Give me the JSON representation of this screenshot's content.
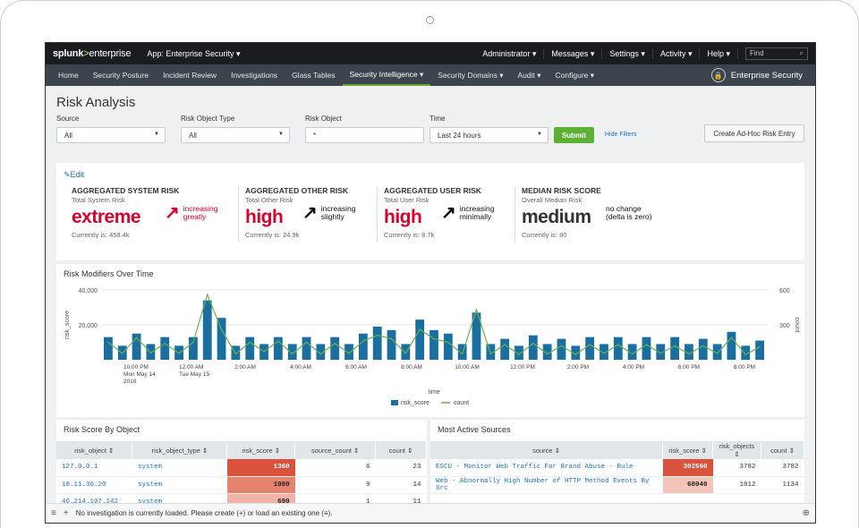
{
  "topbar": {
    "brand_splunk": "splunk",
    "brand_gt": ">",
    "brand_enterprise": "enterprise",
    "app_label": "App: Enterprise Security ▾",
    "menu": [
      "Administrator ▾",
      "Messages ▾",
      "Settings ▾",
      "Activity ▾",
      "Help ▾"
    ],
    "find_placeholder": "Find"
  },
  "nav": {
    "items": [
      "Home",
      "Security Posture",
      "Incident Review",
      "Investigations",
      "Glass Tables",
      "Security Intelligence ▾",
      "Security Domains ▾",
      "Audit ▾",
      "Configure ▾"
    ],
    "active_index": 5,
    "product_name": "Enterprise Security"
  },
  "page": {
    "title": "Risk Analysis"
  },
  "filters": {
    "source_label": "Source",
    "source_value": "All",
    "type_label": "Risk Object Type",
    "type_value": "All",
    "object_label": "Risk Object",
    "object_value": "*",
    "time_label": "Time",
    "time_value": "Last 24 hours",
    "submit": "Submit",
    "hide_filters": "Hide Filters",
    "adhoc": "Create Ad-Hoc Risk Entry"
  },
  "kpis": {
    "edit_label": "Edit",
    "items": [
      {
        "title": "AGGREGATED SYSTEM RISK",
        "subtitle": "Total System Risk",
        "value": "extreme",
        "value_color": "#d6002e",
        "trend_icon": "arrow-up-right-icon",
        "trend_arrow": "↗",
        "trend_color": "#d6002e",
        "trend_line1": "increasing",
        "trend_line2": "greatly",
        "current": "Currently is: 458.4k"
      },
      {
        "title": "AGGREGATED OTHER RISK",
        "subtitle": "Total Other Risk",
        "value": "high",
        "value_color": "#d6002e",
        "trend_icon": "arrow-up-right-icon",
        "trend_arrow": "↗",
        "trend_color": "#111111",
        "trend_line1": "increasing",
        "trend_line2": "slightly",
        "current": "Currently is: 24.9k"
      },
      {
        "title": "AGGREGATED USER RISK",
        "subtitle": "Total User Risk",
        "value": "high",
        "value_color": "#d6002e",
        "trend_icon": "arrow-up-right-icon",
        "trend_arrow": "↗",
        "trend_color": "#111111",
        "trend_line1": "increasing",
        "trend_line2": "minimally",
        "current": "Currently is: 8.7k"
      },
      {
        "title": "MEDIAN RISK SCORE",
        "subtitle": "Overall Median Risk",
        "value": "medium",
        "value_color": "#333333",
        "trend_icon": "",
        "trend_arrow": "",
        "trend_color": "#111111",
        "trend_line1": "no change",
        "trend_line2": "(delta is zero)",
        "current": "Currently is: 80"
      }
    ]
  },
  "chart_panel": {
    "title": "Risk Modifiers Over Time"
  },
  "chart_data": {
    "type": "bar",
    "title": "Risk Modifiers Over Time",
    "xlabel": "time",
    "ylabel": "risk_score",
    "y2label": "count",
    "ylim": [
      0,
      40000
    ],
    "y2lim": [
      0,
      600
    ],
    "y_ticks": [
      "40,000",
      "20,000"
    ],
    "y2_ticks": [
      "600",
      "300"
    ],
    "x_tick_labels": [
      [
        "10:00 PM",
        "Mon May 14",
        "2018"
      ],
      [
        "12:00 AM",
        "Tue May 15"
      ],
      [
        "2:00 AM"
      ],
      [
        "4:00 AM"
      ],
      [
        "6:00 AM"
      ],
      [
        "8:00 AM"
      ],
      [
        "10:00 AM"
      ],
      [
        "12:00 PM"
      ],
      [
        "2:00 PM"
      ],
      [
        "4:00 PM"
      ],
      [
        "6:00 PM"
      ],
      [
        "8:00 PM"
      ]
    ],
    "series": [
      {
        "name": "risk_score",
        "kind": "bar",
        "color": "#1a6fa0",
        "values": [
          13000,
          8000,
          15000,
          9000,
          13000,
          8000,
          13000,
          34000,
          24000,
          8000,
          13000,
          9000,
          13000,
          9000,
          13000,
          9000,
          13000,
          9000,
          15000,
          19000,
          17000,
          9000,
          23000,
          17000,
          15000,
          9000,
          27000,
          9000,
          12000,
          8000,
          14000,
          9000,
          12000,
          8000,
          13000,
          9000,
          13000,
          9000,
          13000,
          9000,
          13000,
          9000,
          12000,
          9000,
          16000,
          8000,
          11000
        ]
      },
      {
        "name": "count",
        "kind": "line",
        "color": "#6ab04c",
        "values": [
          150,
          55,
          190,
          60,
          140,
          55,
          150,
          560,
          260,
          50,
          150,
          70,
          160,
          50,
          150,
          50,
          140,
          55,
          160,
          210,
          180,
          55,
          260,
          180,
          150,
          50,
          430,
          50,
          130,
          45,
          140,
          50,
          120,
          45,
          130,
          55,
          130,
          50,
          130,
          55,
          120,
          50,
          120,
          55,
          190,
          45,
          110
        ]
      }
    ],
    "legend": [
      "risk_score",
      "count"
    ],
    "legend_position": "bottom"
  },
  "left_table": {
    "title": "Risk Score By Object",
    "columns": [
      "risk_object ⇕",
      "risk_object_type ⇕",
      "risk_score ⇕",
      "source_count ⇕",
      "count ⇕"
    ],
    "rows": [
      [
        "127.0.0.1",
        "system",
        "1360",
        "6",
        "23"
      ],
      [
        "10.11.36.20",
        "system",
        "1000",
        "9",
        "14"
      ],
      [
        "46.214.107.142",
        "system",
        "690",
        "1",
        "11"
      ]
    ],
    "score_colors": [
      "#d9533c",
      "#e5836e",
      "#f0b3a5"
    ]
  },
  "right_table": {
    "title": "Most Active Sources",
    "columns": [
      "source ⇕",
      "risk_score ⇕",
      "risk_objects ⇕",
      "count ⇕"
    ],
    "rows": [
      [
        "ESCU - Monitor Web Traffic For Brand Abuse - Rule",
        "302560",
        "3782",
        "3782"
      ],
      [
        "Web - Abnormally High Number of HTTP Method Events By Src",
        "68040",
        "1012",
        "1134"
      ]
    ],
    "score_colors": [
      "#d9533c",
      "#f3c4b8"
    ]
  },
  "footer": {
    "message": "No investigation is currently loaded. Please create (+) or load an existing one (≡)."
  }
}
